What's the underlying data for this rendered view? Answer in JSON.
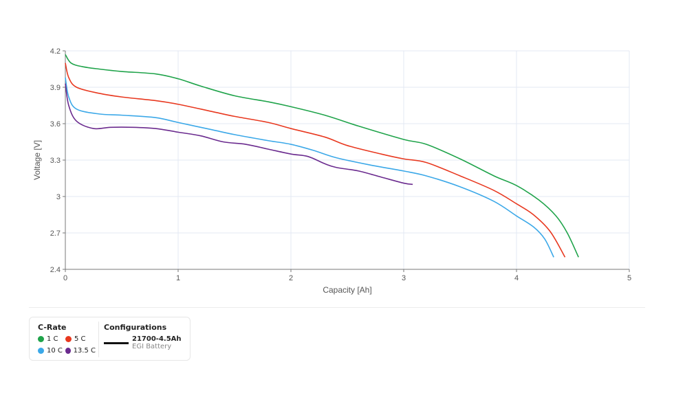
{
  "chart_data": {
    "type": "line",
    "title": "",
    "xlabel": "Capacity [Ah]",
    "ylabel": "Voltage [V]",
    "xlim": [
      0,
      5
    ],
    "ylim": [
      2.4,
      4.2
    ],
    "x_ticks": [
      "0",
      "1",
      "2",
      "3",
      "4",
      "5"
    ],
    "y_ticks": [
      "2.4",
      "2.7",
      "3",
      "3.3",
      "3.6",
      "3.9",
      "4.2"
    ],
    "grid": true,
    "legend_position": "bottom-left",
    "series": [
      {
        "name": "1 C",
        "color": "#1fa34a",
        "x": [
          0,
          0.05,
          0.15,
          0.3,
          0.5,
          0.8,
          1.0,
          1.2,
          1.5,
          1.8,
          2.0,
          2.3,
          2.6,
          3.0,
          3.2,
          3.5,
          3.8,
          4.0,
          4.2,
          4.35,
          4.45,
          4.55
        ],
        "y": [
          4.17,
          4.1,
          4.07,
          4.05,
          4.03,
          4.01,
          3.97,
          3.91,
          3.83,
          3.78,
          3.74,
          3.67,
          3.58,
          3.47,
          3.43,
          3.31,
          3.17,
          3.09,
          2.97,
          2.84,
          2.7,
          2.5
        ]
      },
      {
        "name": "5 C",
        "color": "#e8381f",
        "x": [
          0,
          0.03,
          0.1,
          0.3,
          0.5,
          0.8,
          1.0,
          1.3,
          1.5,
          1.8,
          2.0,
          2.3,
          2.5,
          2.8,
          3.0,
          3.2,
          3.5,
          3.8,
          4.0,
          4.15,
          4.3,
          4.43
        ],
        "y": [
          4.1,
          3.98,
          3.9,
          3.85,
          3.82,
          3.79,
          3.76,
          3.7,
          3.66,
          3.61,
          3.56,
          3.49,
          3.42,
          3.35,
          3.31,
          3.28,
          3.17,
          3.05,
          2.94,
          2.85,
          2.71,
          2.5
        ]
      },
      {
        "name": "10 C",
        "color": "#3ba8e8",
        "x": [
          0,
          0.03,
          0.1,
          0.3,
          0.5,
          0.8,
          1.0,
          1.3,
          1.5,
          1.8,
          2.0,
          2.2,
          2.4,
          2.7,
          3.0,
          3.2,
          3.5,
          3.8,
          4.0,
          4.15,
          4.25,
          4.33
        ],
        "y": [
          3.98,
          3.82,
          3.72,
          3.68,
          3.67,
          3.65,
          3.61,
          3.55,
          3.51,
          3.46,
          3.43,
          3.38,
          3.32,
          3.26,
          3.21,
          3.17,
          3.08,
          2.96,
          2.84,
          2.75,
          2.65,
          2.5
        ]
      },
      {
        "name": "13.5 C",
        "color": "#6a2a8e",
        "x": [
          0,
          0.03,
          0.1,
          0.25,
          0.4,
          0.6,
          0.8,
          1.0,
          1.2,
          1.4,
          1.6,
          1.8,
          2.0,
          2.15,
          2.3,
          2.4,
          2.6,
          2.8,
          3.0,
          3.08
        ],
        "y": [
          3.93,
          3.75,
          3.62,
          3.56,
          3.57,
          3.57,
          3.56,
          3.53,
          3.5,
          3.45,
          3.43,
          3.39,
          3.35,
          3.33,
          3.27,
          3.24,
          3.21,
          3.16,
          3.11,
          3.1
        ]
      }
    ]
  },
  "legend": {
    "crate_title": "C-Rate",
    "items": [
      {
        "label": "1 C",
        "color": "#1fa34a"
      },
      {
        "label": "5 C",
        "color": "#e8381f"
      },
      {
        "label": "10 C",
        "color": "#3ba8e8"
      },
      {
        "label": "13.5 C",
        "color": "#6a2a8e"
      }
    ],
    "config_title": "Configurations",
    "config_name": "21700-4.5Ah",
    "config_sub": "EGI Battery"
  }
}
